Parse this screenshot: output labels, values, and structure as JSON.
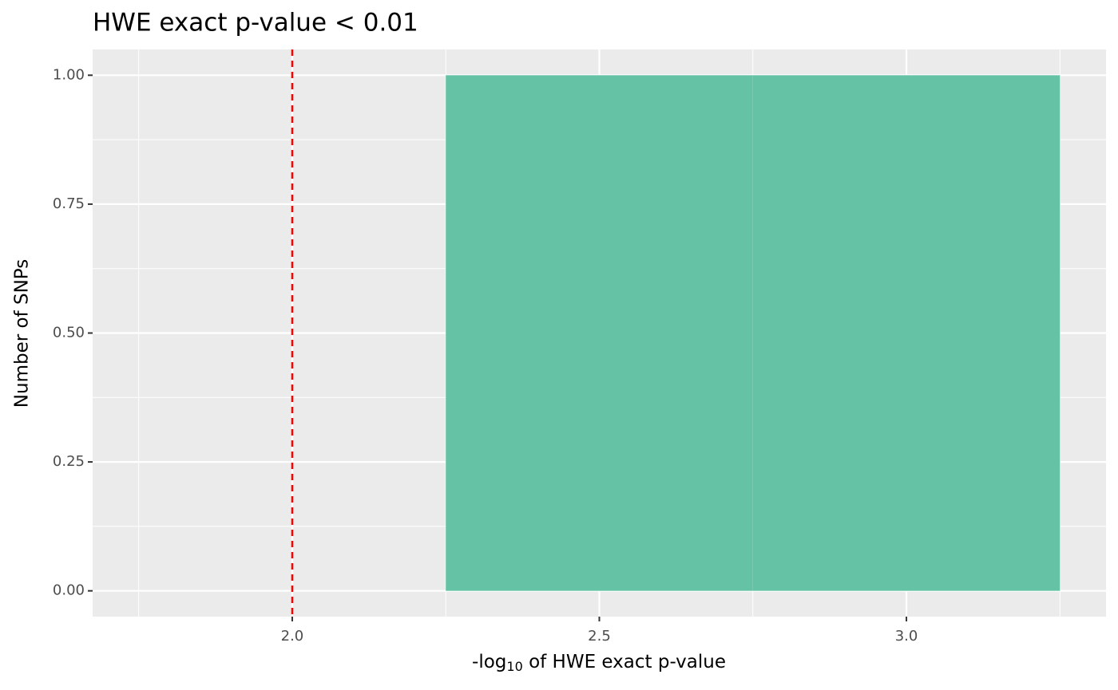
{
  "chart_data": {
    "type": "histogram",
    "title": "HWE exact p-value < 0.01",
    "x_label": {
      "prefix": "-log",
      "subscript": "10",
      "suffix": " of HWE exact p-value"
    },
    "y_label": "Number of SNPs",
    "bins": [
      1.75,
      2.25,
      2.75,
      3.25
    ],
    "values": [
      0,
      1,
      1
    ],
    "color": "#66c2a5",
    "vline": {
      "value": 2.0,
      "color": "#ff0000",
      "dashed": true
    },
    "xlim": [
      1.675,
      3.325
    ],
    "xticks": [
      {
        "value": 2.0,
        "label": "2.0"
      },
      {
        "value": 2.5,
        "label": "2.5"
      },
      {
        "value": 3.0,
        "label": "3.0"
      }
    ],
    "ylim": [
      -0.05,
      1.05
    ],
    "yticks": [
      {
        "value": 0,
        "label": "0.00"
      },
      {
        "value": 0.25,
        "label": "0.25"
      },
      {
        "value": 0.5,
        "label": "0.50"
      },
      {
        "value": 0.75,
        "label": "0.75"
      },
      {
        "value": 1,
        "label": "1.00"
      }
    ],
    "grid": true
  }
}
